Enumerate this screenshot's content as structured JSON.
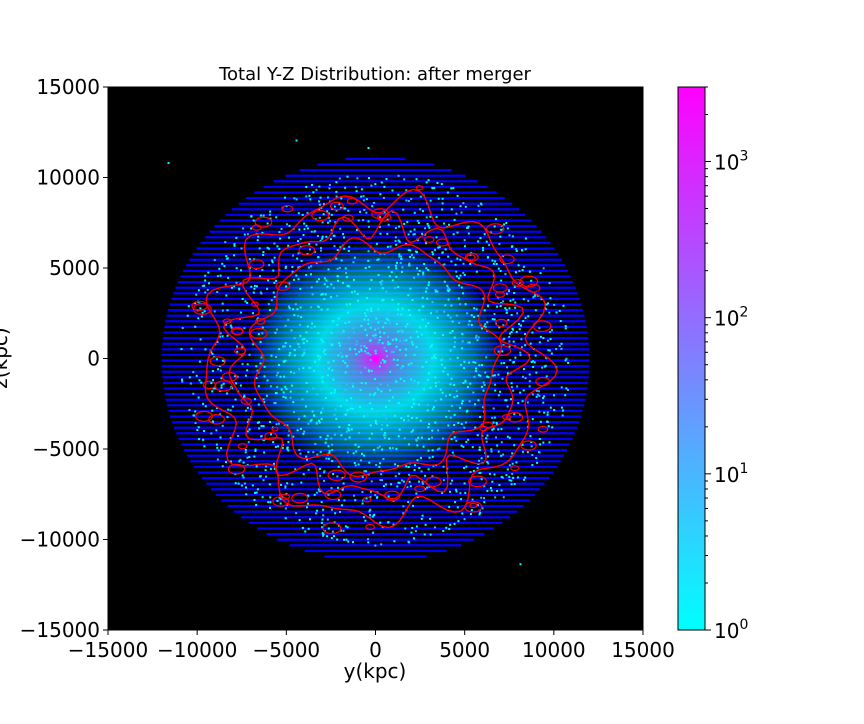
{
  "chart_data": {
    "type": "heatmap",
    "title": "Total Y-Z Distribution: after merger",
    "xlabel": "y(kpc)",
    "ylabel": "z(kpc)",
    "xlim": [
      -15000,
      15000
    ],
    "ylim": [
      -15000,
      15000
    ],
    "x_ticks": [
      -15000,
      -10000,
      -5000,
      0,
      5000,
      10000,
      15000
    ],
    "x_tick_labels": [
      "−15000",
      "−10000",
      "−5000",
      "0",
      "5000",
      "10000",
      "15000"
    ],
    "y_ticks": [
      -15000,
      -10000,
      -5000,
      0,
      5000,
      10000,
      15000
    ],
    "y_tick_labels": [
      "−15000",
      "−10000",
      "−5000",
      "0",
      "5000",
      "10000",
      "15000"
    ],
    "grid": false,
    "background_color": "#000000",
    "colormap": "cool",
    "colormap_colors": [
      "#00ffff",
      "#ff00ff"
    ],
    "contour_color": "#ff0000",
    "distribution": {
      "shape": "disk",
      "center": [
        0,
        0
      ],
      "radius_y": 12000,
      "radius_z": 11200,
      "peak_count": 3000,
      "peak_location": [
        0,
        0
      ]
    },
    "colorbar": {
      "scale": "log",
      "range": [
        1,
        3000
      ],
      "ticks": [
        {
          "base": "10",
          "exp": "0",
          "value": 1
        },
        {
          "base": "10",
          "exp": "1",
          "value": 10
        },
        {
          "base": "10",
          "exp": "2",
          "value": 100
        },
        {
          "base": "10",
          "exp": "3",
          "value": 1000
        }
      ]
    }
  }
}
